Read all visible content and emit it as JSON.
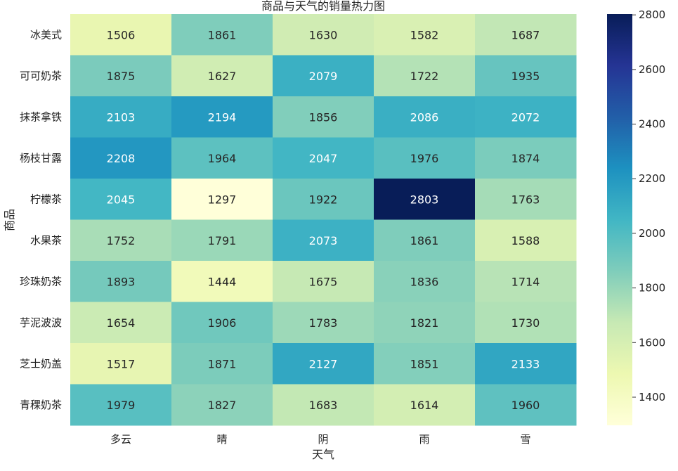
{
  "chart_data": {
    "type": "heatmap",
    "title": "商品与天气的销量热力图",
    "xlabel": "天气",
    "ylabel": "商品",
    "x_categories": [
      "多云",
      "晴",
      "阴",
      "雨",
      "雪"
    ],
    "y_categories": [
      "冰美式",
      "可可奶茶",
      "抹茶拿铁",
      "杨枝甘露",
      "柠檬茶",
      "水果茶",
      "珍珠奶茶",
      "芋泥波波",
      "芝士奶盖",
      "青稞奶茶"
    ],
    "values": [
      [
        1506,
        1861,
        1630,
        1582,
        1687
      ],
      [
        1875,
        1627,
        2079,
        1722,
        1935
      ],
      [
        2103,
        2194,
        1856,
        2086,
        2072
      ],
      [
        2208,
        1964,
        2047,
        1976,
        1874
      ],
      [
        2045,
        1297,
        1922,
        2803,
        1763
      ],
      [
        1752,
        1791,
        2073,
        1861,
        1588
      ],
      [
        1893,
        1444,
        1675,
        1836,
        1714
      ],
      [
        1654,
        1906,
        1783,
        1821,
        1730
      ],
      [
        1517,
        1871,
        2127,
        1851,
        2133
      ],
      [
        1979,
        1827,
        1683,
        1614,
        1960
      ]
    ],
    "colormap": "YlGnBu",
    "vmin": 1297,
    "vmax": 2803,
    "colorbar_ticks": [
      1400,
      1600,
      1800,
      2000,
      2200,
      2400,
      2600,
      2800
    ],
    "annotated": true,
    "grid": false
  }
}
